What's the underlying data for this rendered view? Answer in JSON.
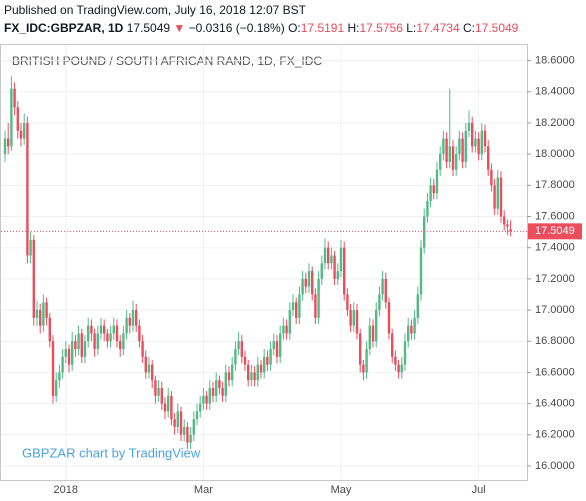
{
  "header": {
    "published": "Published on TradingView.com, July 16, 2018 12:07 BST",
    "symbol": "FX_IDC:GBPZAR, 1D",
    "last": "17.5049",
    "change": "−0.0316 (−0.18%)",
    "open_label": "O:",
    "open": "17.5191",
    "high_label": "H:",
    "high": "17.5756",
    "low_label": "L:",
    "low": "17.4734",
    "close_label": "C:",
    "close": "17.5049"
  },
  "chart_data": {
    "type": "candlestick",
    "title": "BRITISH POUND / SOUTH AFRICAN RAND, 1D, FX_IDC",
    "watermark": "GBPZAR chart by TradingView",
    "up_color": "#53b987",
    "down_color": "#eb4d5c",
    "grid": true,
    "last_price": {
      "value": 17.5049,
      "label": "17.5049"
    },
    "ylim": [
      15.91,
      18.7
    ],
    "yticks": [
      {
        "value": 16,
        "label": "16.0000"
      },
      {
        "value": 16.2,
        "label": "16.2000"
      },
      {
        "value": 16.4,
        "label": "16.4000"
      },
      {
        "value": 16.6,
        "label": "16.6000"
      },
      {
        "value": 16.8,
        "label": "16.8000"
      },
      {
        "value": 17,
        "label": "17.0000"
      },
      {
        "value": 17.2,
        "label": "17.2000"
      },
      {
        "value": 17.4,
        "label": "17.4000"
      },
      {
        "value": 17.6,
        "label": "17.6000"
      },
      {
        "value": 17.8,
        "label": "17.8000"
      },
      {
        "value": 18,
        "label": "18.0000"
      },
      {
        "value": 18.2,
        "label": "18.2000"
      },
      {
        "value": 18.4,
        "label": "18.4000"
      },
      {
        "value": 18.6,
        "label": "18.6000"
      }
    ],
    "categories": [
      null,
      null,
      null,
      null,
      null,
      null,
      null,
      null,
      null,
      null,
      null,
      null,
      null,
      null,
      null,
      null,
      null,
      null,
      null,
      "2018",
      null,
      null,
      null,
      null,
      null,
      null,
      null,
      null,
      null,
      null,
      null,
      null,
      null,
      null,
      null,
      null,
      null,
      null,
      null,
      null,
      null,
      null,
      null,
      null,
      null,
      null,
      null,
      null,
      null,
      null,
      null,
      null,
      null,
      null,
      null,
      null,
      null,
      null,
      null,
      null,
      null,
      null,
      "Mar",
      null,
      null,
      null,
      null,
      null,
      null,
      null,
      null,
      null,
      null,
      null,
      null,
      null,
      null,
      null,
      null,
      null,
      null,
      null,
      null,
      null,
      null,
      null,
      null,
      null,
      null,
      null,
      null,
      null,
      null,
      null,
      null,
      null,
      null,
      null,
      null,
      null,
      null,
      null,
      null,
      null,
      null,
      "May",
      null,
      null,
      null,
      null,
      null,
      null,
      null,
      null,
      null,
      null,
      null,
      null,
      null,
      null,
      null,
      null,
      null,
      null,
      null,
      null,
      null,
      null,
      null,
      null,
      null,
      null,
      null,
      null,
      null,
      null,
      null,
      null,
      null,
      null,
      null,
      null,
      null,
      null,
      null,
      null,
      null,
      null,
      "Jul",
      null,
      null,
      null,
      null,
      null,
      null,
      null,
      null,
      null,
      null
    ],
    "candles": [
      [
        18.0,
        18.15,
        17.95,
        18.1
      ],
      [
        18.1,
        18.2,
        18.0,
        18.05
      ],
      [
        18.05,
        18.5,
        18.02,
        18.42
      ],
      [
        18.42,
        18.46,
        18.25,
        18.3
      ],
      [
        18.3,
        18.34,
        18.1,
        18.15
      ],
      [
        18.15,
        18.2,
        18.05,
        18.1
      ],
      [
        18.1,
        18.26,
        18.06,
        18.2
      ],
      [
        18.2,
        18.24,
        17.3,
        17.35
      ],
      [
        17.35,
        17.5,
        17.3,
        17.45
      ],
      [
        17.45,
        17.48,
        16.9,
        16.95
      ],
      [
        16.95,
        17.06,
        16.9,
        17.0
      ],
      [
        17.0,
        17.04,
        16.85,
        16.9
      ],
      [
        16.9,
        17.1,
        16.86,
        17.05
      ],
      [
        17.05,
        17.08,
        16.9,
        16.95
      ],
      [
        16.95,
        16.98,
        16.76,
        16.8
      ],
      [
        16.8,
        16.84,
        16.4,
        16.45
      ],
      [
        16.45,
        16.6,
        16.41,
        16.55
      ],
      [
        16.55,
        16.65,
        16.5,
        16.6
      ],
      [
        16.6,
        16.75,
        16.56,
        16.7
      ],
      [
        16.7,
        16.8,
        16.66,
        16.75
      ],
      [
        16.75,
        16.78,
        16.6,
        16.65
      ],
      [
        16.65,
        16.86,
        16.61,
        16.8
      ],
      [
        16.8,
        16.84,
        16.7,
        16.75
      ],
      [
        16.75,
        16.9,
        16.71,
        16.85
      ],
      [
        16.85,
        16.88,
        16.66,
        16.7
      ],
      [
        16.7,
        16.84,
        16.66,
        16.8
      ],
      [
        16.8,
        16.95,
        16.76,
        16.9
      ],
      [
        16.9,
        16.94,
        16.8,
        16.85
      ],
      [
        16.85,
        16.88,
        16.7,
        16.75
      ],
      [
        16.75,
        16.9,
        16.71,
        16.85
      ],
      [
        16.85,
        16.95,
        16.81,
        16.9
      ],
      [
        16.9,
        16.94,
        16.8,
        16.85
      ],
      [
        16.85,
        16.88,
        16.76,
        16.8
      ],
      [
        16.8,
        16.9,
        16.76,
        16.85
      ],
      [
        16.85,
        16.95,
        16.81,
        16.9
      ],
      [
        16.9,
        16.94,
        16.76,
        16.8
      ],
      [
        16.8,
        16.84,
        16.7,
        16.75
      ],
      [
        16.75,
        16.9,
        16.71,
        16.85
      ],
      [
        16.85,
        17.0,
        16.81,
        16.95
      ],
      [
        16.95,
        16.98,
        16.85,
        16.9
      ],
      [
        16.9,
        17.06,
        16.86,
        17.0
      ],
      [
        17.0,
        17.04,
        16.86,
        16.9
      ],
      [
        16.9,
        16.94,
        16.76,
        16.8
      ],
      [
        16.8,
        16.84,
        16.66,
        16.7
      ],
      [
        16.7,
        16.74,
        16.56,
        16.6
      ],
      [
        16.6,
        16.7,
        16.56,
        16.65
      ],
      [
        16.65,
        16.68,
        16.5,
        16.55
      ],
      [
        16.55,
        16.58,
        16.4,
        16.45
      ],
      [
        16.45,
        16.55,
        16.41,
        16.5
      ],
      [
        16.5,
        16.54,
        16.36,
        16.4
      ],
      [
        16.4,
        16.44,
        16.3,
        16.35
      ],
      [
        16.35,
        16.5,
        16.31,
        16.45
      ],
      [
        16.45,
        16.48,
        16.26,
        16.3
      ],
      [
        16.3,
        16.34,
        16.2,
        16.25
      ],
      [
        16.25,
        16.4,
        16.21,
        16.35
      ],
      [
        16.35,
        16.38,
        16.16,
        16.2
      ],
      [
        16.2,
        16.3,
        16.16,
        16.25
      ],
      [
        16.25,
        16.28,
        16.11,
        16.15
      ],
      [
        16.15,
        16.25,
        16.11,
        16.2
      ],
      [
        16.2,
        16.35,
        16.16,
        16.3
      ],
      [
        16.3,
        16.4,
        16.26,
        16.35
      ],
      [
        16.35,
        16.45,
        16.31,
        16.4
      ],
      [
        16.4,
        16.5,
        16.36,
        16.45
      ],
      [
        16.45,
        16.48,
        16.36,
        16.4
      ],
      [
        16.4,
        16.55,
        16.36,
        16.5
      ],
      [
        16.5,
        16.54,
        16.41,
        16.45
      ],
      [
        16.45,
        16.6,
        16.41,
        16.55
      ],
      [
        16.55,
        16.58,
        16.46,
        16.5
      ],
      [
        16.5,
        16.54,
        16.41,
        16.45
      ],
      [
        16.45,
        16.65,
        16.41,
        16.6
      ],
      [
        16.6,
        16.64,
        16.51,
        16.55
      ],
      [
        16.55,
        16.7,
        16.51,
        16.65
      ],
      [
        16.65,
        16.8,
        16.61,
        16.75
      ],
      [
        16.75,
        16.86,
        16.71,
        16.8
      ],
      [
        16.8,
        16.84,
        16.66,
        16.7
      ],
      [
        16.7,
        16.74,
        16.61,
        16.65
      ],
      [
        16.65,
        16.68,
        16.51,
        16.55
      ],
      [
        16.55,
        16.65,
        16.51,
        16.6
      ],
      [
        16.6,
        16.64,
        16.51,
        16.55
      ],
      [
        16.55,
        16.7,
        16.51,
        16.65
      ],
      [
        16.65,
        16.68,
        16.56,
        16.6
      ],
      [
        16.6,
        16.75,
        16.56,
        16.7
      ],
      [
        16.7,
        16.74,
        16.61,
        16.65
      ],
      [
        16.65,
        16.8,
        16.61,
        16.75
      ],
      [
        16.75,
        16.85,
        16.71,
        16.8
      ],
      [
        16.8,
        16.84,
        16.66,
        16.7
      ],
      [
        16.7,
        16.9,
        16.66,
        16.85
      ],
      [
        16.85,
        16.95,
        16.81,
        16.9
      ],
      [
        16.9,
        16.94,
        16.81,
        16.85
      ],
      [
        16.85,
        17.05,
        16.81,
        17.0
      ],
      [
        17.0,
        17.1,
        16.96,
        17.05
      ],
      [
        17.05,
        17.08,
        16.91,
        16.95
      ],
      [
        16.95,
        17.15,
        16.91,
        17.1
      ],
      [
        17.1,
        17.25,
        17.06,
        17.2
      ],
      [
        17.2,
        17.24,
        17.11,
        17.15
      ],
      [
        17.15,
        17.3,
        17.11,
        17.25
      ],
      [
        17.25,
        17.28,
        17.06,
        17.1
      ],
      [
        17.1,
        17.14,
        16.91,
        16.95
      ],
      [
        16.95,
        17.25,
        16.91,
        17.2
      ],
      [
        17.2,
        17.35,
        17.16,
        17.3
      ],
      [
        17.3,
        17.46,
        17.26,
        17.4
      ],
      [
        17.4,
        17.44,
        17.26,
        17.3
      ],
      [
        17.3,
        17.4,
        17.26,
        17.35
      ],
      [
        17.35,
        17.38,
        17.16,
        17.2
      ],
      [
        17.2,
        17.3,
        17.16,
        17.25
      ],
      [
        17.25,
        17.45,
        17.21,
        17.4
      ],
      [
        17.4,
        17.44,
        17.06,
        17.1
      ],
      [
        17.1,
        17.14,
        16.96,
        17.0
      ],
      [
        17.0,
        17.04,
        16.86,
        16.9
      ],
      [
        16.9,
        17.05,
        16.86,
        17.0
      ],
      [
        17.0,
        17.04,
        16.81,
        16.85
      ],
      [
        16.85,
        16.88,
        16.6,
        16.65
      ],
      [
        16.65,
        16.68,
        16.55,
        16.6
      ],
      [
        16.6,
        16.8,
        16.56,
        16.75
      ],
      [
        16.75,
        16.95,
        16.71,
        16.9
      ],
      [
        16.9,
        16.94,
        16.76,
        16.8
      ],
      [
        16.8,
        17.05,
        16.76,
        17.0
      ],
      [
        17.0,
        17.15,
        16.96,
        17.1
      ],
      [
        17.1,
        17.25,
        17.06,
        17.2
      ],
      [
        17.2,
        17.24,
        17.01,
        17.05
      ],
      [
        17.05,
        17.08,
        16.81,
        16.85
      ],
      [
        16.85,
        16.88,
        16.66,
        16.7
      ],
      [
        16.7,
        16.74,
        16.61,
        16.65
      ],
      [
        16.65,
        16.68,
        16.56,
        16.6
      ],
      [
        16.6,
        16.7,
        16.56,
        16.65
      ],
      [
        16.65,
        16.85,
        16.61,
        16.8
      ],
      [
        16.8,
        16.95,
        16.76,
        16.9
      ],
      [
        16.9,
        16.94,
        16.81,
        16.85
      ],
      [
        16.85,
        17.0,
        16.81,
        16.95
      ],
      [
        16.95,
        17.15,
        16.91,
        17.1
      ],
      [
        17.1,
        17.45,
        17.06,
        17.4
      ],
      [
        17.4,
        17.65,
        17.36,
        17.6
      ],
      [
        17.6,
        17.75,
        17.56,
        17.7
      ],
      [
        17.7,
        17.85,
        17.66,
        17.8
      ],
      [
        17.8,
        17.84,
        17.71,
        17.75
      ],
      [
        17.75,
        17.95,
        17.71,
        17.9
      ],
      [
        17.9,
        18.05,
        17.86,
        18.0
      ],
      [
        18.0,
        18.15,
        17.96,
        18.1
      ],
      [
        18.1,
        18.14,
        17.91,
        17.95
      ],
      [
        17.95,
        18.42,
        17.91,
        18.05
      ],
      [
        18.05,
        18.09,
        17.86,
        17.9
      ],
      [
        17.9,
        18.05,
        17.86,
        18.0
      ],
      [
        18.0,
        18.15,
        17.96,
        18.1
      ],
      [
        18.1,
        18.14,
        17.91,
        17.95
      ],
      [
        17.95,
        18.2,
        17.91,
        18.15
      ],
      [
        18.15,
        18.28,
        18.11,
        18.2
      ],
      [
        18.2,
        18.24,
        18.01,
        18.05
      ],
      [
        18.05,
        18.15,
        18.01,
        18.1
      ],
      [
        18.1,
        18.14,
        17.96,
        18.0
      ],
      [
        18.0,
        18.2,
        17.96,
        18.15
      ],
      [
        18.15,
        18.19,
        18.01,
        18.05
      ],
      [
        18.05,
        18.09,
        17.86,
        17.9
      ],
      [
        17.9,
        17.94,
        17.76,
        17.8
      ],
      [
        17.8,
        17.84,
        17.61,
        17.65
      ],
      [
        17.65,
        17.9,
        17.61,
        17.85
      ],
      [
        17.85,
        17.89,
        17.56,
        17.6
      ],
      [
        17.6,
        17.64,
        17.51,
        17.55
      ],
      [
        17.55,
        17.58,
        17.48,
        17.5365
      ],
      [
        17.5191,
        17.5756,
        17.4734,
        17.5049
      ]
    ]
  }
}
